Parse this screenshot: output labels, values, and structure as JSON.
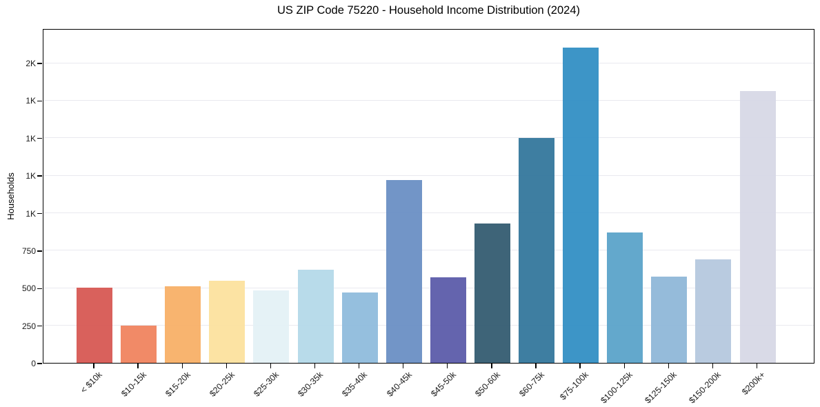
{
  "chart_data": {
    "type": "bar",
    "title": "US ZIP Code 75220 - Household Income Distribution (2024)",
    "xlabel": "",
    "ylabel": "Households",
    "categories": [
      "< $10k",
      "$10-15k",
      "$15-20k",
      "$20-25k",
      "$25-30k",
      "$30-35k",
      "$35-40k",
      "$40-45k",
      "$45-50k",
      "$50-60k",
      "$60-75k",
      "$75-100k",
      "$100-125k",
      "$125-150k",
      "$150-200k",
      "$200k+"
    ],
    "values": [
      500,
      250,
      510,
      545,
      485,
      620,
      470,
      1220,
      570,
      930,
      1500,
      2100,
      870,
      575,
      690,
      1810
    ],
    "bar_colors": [
      "#d75853",
      "#f0845f",
      "#f8b067",
      "#fce19e",
      "#e4f1f6",
      "#b4d9e9",
      "#8fbcdc",
      "#6a8fc4",
      "#5c5caa",
      "#345c71",
      "#34779c",
      "#338fc4",
      "#5ba3c9",
      "#8fb7d8",
      "#b5c8de",
      "#d7d8e6"
    ],
    "ylim": [
      0,
      2230
    ],
    "yticks": [
      {
        "value": 0,
        "label": "0"
      },
      {
        "value": 250,
        "label": "250"
      },
      {
        "value": 500,
        "label": "500"
      },
      {
        "value": 750,
        "label": "750"
      },
      {
        "value": 1000,
        "label": "1K"
      },
      {
        "value": 1250,
        "label": "1K"
      },
      {
        "value": 1500,
        "label": "1K"
      },
      {
        "value": 1750,
        "label": "1K"
      },
      {
        "value": 2000,
        "label": "2K"
      }
    ],
    "grid": true,
    "gridline_color": "#e9e9ef",
    "spine_color": "#000000",
    "legend": "none",
    "background_color": "#ffffff"
  }
}
